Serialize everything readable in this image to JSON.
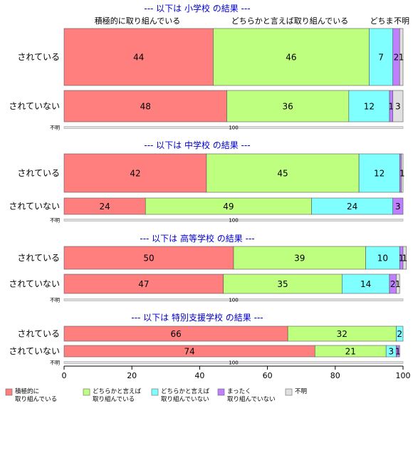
{
  "chart_data": {
    "type": "bar",
    "orientation": "horizontal",
    "stacked": true,
    "xlim": [
      0,
      100
    ],
    "x_ticks": [
      0,
      20,
      40,
      60,
      80,
      100
    ],
    "grid": false,
    "legend_position": "bottom",
    "reference_row_label": "不明",
    "reference_row_value": "100",
    "top_labels": [
      "積極的に取り組んでいる",
      "どちらかと言えば取り組んでいる",
      "どちま",
      "不明"
    ],
    "series": [
      {
        "name": "積極的に\n取り組んでいる",
        "color": "#ff7f7f"
      },
      {
        "name": "どちらかと言えば\n取り組んでいる",
        "color": "#bfff7f"
      },
      {
        "name": "どちらかと言えば\n取り組んでいない",
        "color": "#7fffff"
      },
      {
        "name": "まったく\n取り組んでいない",
        "color": "#bf7fff"
      },
      {
        "name": "不明",
        "color": "#e0e0e0"
      }
    ],
    "panels": [
      {
        "title": "--- 以下は 小学校 の結果 ---",
        "categories": [
          "されている",
          "されていない"
        ],
        "values": [
          [
            44,
            46,
            7,
            2,
            1
          ],
          [
            48,
            36,
            12,
            1,
            3
          ]
        ],
        "labels": [
          [
            "44",
            "46",
            "7",
            "2",
            "1"
          ],
          [
            "48",
            "36",
            "12",
            "1",
            "3"
          ]
        ]
      },
      {
        "title": "--- 以下は 中学校 の結果 ---",
        "categories": [
          "されている",
          "されていない"
        ],
        "values": [
          [
            42,
            45,
            12,
            0.5,
            0.5
          ],
          [
            24,
            49,
            24,
            3,
            0
          ]
        ],
        "labels": [
          [
            "42",
            "45",
            "12",
            "",
            "1"
          ],
          [
            "24",
            "49",
            "24",
            "3",
            ""
          ]
        ]
      },
      {
        "title": "--- 以下は 高等学校 の結果 ---",
        "categories": [
          "されている",
          "されていない"
        ],
        "values": [
          [
            50,
            39,
            10,
            1,
            1
          ],
          [
            47,
            35,
            14,
            2,
            1
          ]
        ],
        "labels": [
          [
            "50",
            "39",
            "10",
            "1",
            "1"
          ],
          [
            "47",
            "35",
            "14",
            "2",
            "1"
          ]
        ]
      },
      {
        "title": "--- 以下は 特別支援学校 の結果 ---",
        "categories": [
          "されている",
          "されていない"
        ],
        "values": [
          [
            66,
            32,
            2,
            0,
            0
          ],
          [
            74,
            21,
            3,
            1,
            0
          ]
        ],
        "labels": [
          [
            "66",
            "32",
            "2",
            "",
            ""
          ],
          [
            "74",
            "21",
            "3",
            "1",
            ""
          ]
        ]
      }
    ]
  }
}
